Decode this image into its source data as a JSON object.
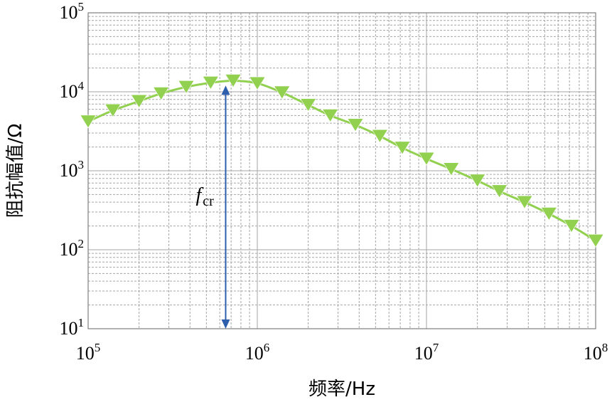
{
  "chart_data": {
    "type": "line",
    "title": "",
    "xlabel": "频率/Hz",
    "ylabel": "阻抗幅值/Ω",
    "x_scale": "log",
    "y_scale": "log",
    "xlim": [
      100000,
      100000000
    ],
    "ylim": [
      10,
      100000
    ],
    "grid": true,
    "x_ticks": [
      {
        "base": "10",
        "exp": "5",
        "value": 100000
      },
      {
        "base": "10",
        "exp": "6",
        "value": 1000000
      },
      {
        "base": "10",
        "exp": "7",
        "value": 10000000
      },
      {
        "base": "10",
        "exp": "8",
        "value": 100000000
      }
    ],
    "y_ticks": [
      {
        "base": "10",
        "exp": "1",
        "value": 10
      },
      {
        "base": "10",
        "exp": "2",
        "value": 100
      },
      {
        "base": "10",
        "exp": "3",
        "value": 1000
      },
      {
        "base": "10",
        "exp": "4",
        "value": 10000
      },
      {
        "base": "10",
        "exp": "5",
        "value": 100000
      }
    ],
    "series": [
      {
        "color": "#92d050",
        "marker": "triangle-down",
        "points": [
          [
            100000,
            4200
          ],
          [
            140000,
            5800
          ],
          [
            200000,
            7600
          ],
          [
            270000,
            9500
          ],
          [
            380000,
            11500
          ],
          [
            530000,
            13000
          ],
          [
            720000,
            13800
          ],
          [
            1000000,
            12800
          ],
          [
            1400000,
            9800
          ],
          [
            2000000,
            6800
          ],
          [
            2700000,
            5000
          ],
          [
            3800000,
            3800
          ],
          [
            5300000,
            2750
          ],
          [
            7200000,
            1950
          ],
          [
            10000000,
            1420
          ],
          [
            14000000,
            1050
          ],
          [
            20000000,
            750
          ],
          [
            27000000,
            550
          ],
          [
            38000000,
            400
          ],
          [
            53000000,
            285
          ],
          [
            72000000,
            200
          ],
          [
            100000000,
            130
          ]
        ]
      }
    ],
    "annotations": [
      {
        "type": "double-arrow",
        "color": "#2e5fac",
        "x": 650000,
        "y_from": 12000,
        "y_to": 10,
        "label_main": "f",
        "label_sub": "cr"
      }
    ]
  }
}
